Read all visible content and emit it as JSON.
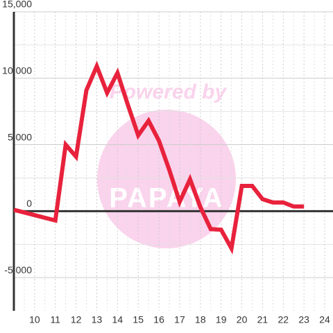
{
  "chart_data": {
    "type": "line",
    "watermark": {
      "line1": "Powered by",
      "line2": "PAPAYA"
    },
    "x": [
      9,
      11,
      11.5,
      12,
      12.5,
      13,
      13.5,
      14,
      14.5,
      15,
      15.5,
      16,
      16.5,
      17,
      17.5,
      18,
      18.5,
      19,
      19.5,
      20,
      20.5,
      21,
      21.5,
      22,
      22.5,
      23
    ],
    "series": [
      {
        "color": "#e8223c",
        "values": [
          100,
          -700,
          5000,
          4100,
          9100,
          10900,
          8900,
          10400,
          8000,
          5700,
          6800,
          5300,
          3100,
          700,
          2400,
          300,
          -1350,
          -1400,
          -2800,
          1900,
          1900,
          900,
          650,
          650,
          350,
          350
        ]
      }
    ],
    "xlim": [
      9,
      24.4
    ],
    "xticks": [
      10,
      11,
      12,
      13,
      14,
      15,
      16,
      17,
      18,
      19,
      20,
      21,
      22,
      23,
      24
    ],
    "ylim": [
      -7500,
      15000
    ],
    "yticks": [
      {
        "value": -5000,
        "label": "-5,000"
      },
      0,
      {
        "value": 5000,
        "label": "5,000"
      },
      {
        "value": 10000,
        "label": "10,000"
      },
      {
        "value": 15000,
        "label": "15,000"
      }
    ],
    "grid": true
  }
}
